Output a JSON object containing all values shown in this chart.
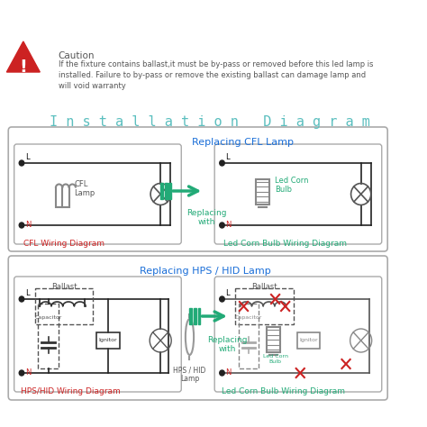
{
  "bg_color": "#ffffff",
  "title": "I n s t a l l a t i o n   D i a g r a m",
  "title_color": "#5bbfbf",
  "title_fontsize": 11,
  "caution_title": "Caution",
  "caution_text": "If the fixture contains ballast,it must be by-pass or removed before this led lamp is\ninstalled. Failure to by-pass or remove the existing ballast can damage lamp and\nwill void warranty",
  "caution_text_color": "#555555",
  "caution_fontsize": 7,
  "box1_title": "Replacing CFL Lamp",
  "box1_title_color": "#1a6ed8",
  "box1_left_label": "CFL Wiring Diagram",
  "box1_right_label": "Led Corn Bulb Wiring Diagram",
  "box1_label_left_color": "#cc2222",
  "box1_label_right_color": "#22aa77",
  "box2_title": "Replacing HPS / HID Lamp",
  "box2_title_color": "#1a6ed8",
  "box2_left_label": "HPS/HID Wiring Diagram",
  "box2_right_label": "Led Corn Bulb Wiring Diagram",
  "box2_label_left_color": "#cc2222",
  "box2_label_right_color": "#22aa77",
  "replacing_text": "Replacing\nwith",
  "replacing_color": "#22aa77",
  "L_color": "#000000",
  "N_color": "#cc2222",
  "wire_color": "#222222",
  "red_x_color": "#cc2222",
  "arrow_color": "#22aa77",
  "dashed_box_color": "#444444",
  "ballast_coil_color": "#333333",
  "capacitor_color": "#333333",
  "ignitor_box_color": "#333333",
  "lamp_circle_color": "#555555"
}
